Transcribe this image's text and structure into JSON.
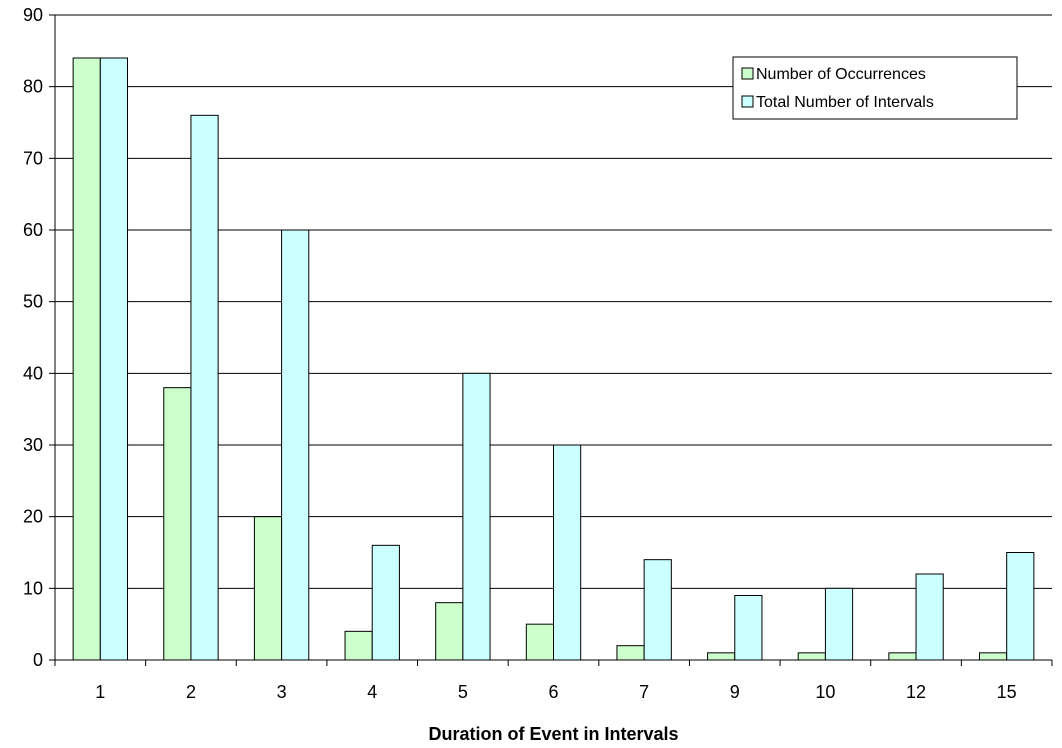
{
  "chart_data": {
    "type": "bar",
    "categories": [
      "1",
      "2",
      "3",
      "4",
      "5",
      "6",
      "7",
      "9",
      "10",
      "12",
      "15"
    ],
    "series": [
      {
        "name": "Number of Occurrences",
        "values": [
          84,
          38,
          20,
          4,
          8,
          5,
          2,
          1,
          1,
          1,
          1
        ],
        "color": "#ccffcc"
      },
      {
        "name": "Total Number of Intervals",
        "values": [
          84,
          76,
          60,
          16,
          40,
          30,
          14,
          9,
          10,
          12,
          15
        ],
        "color": "#ccffff"
      }
    ],
    "title": "",
    "xlabel": "Duration of Event in Intervals",
    "ylabel": "",
    "ylim": [
      0,
      90
    ],
    "yticks": [
      0,
      10,
      20,
      30,
      40,
      50,
      60,
      70,
      80,
      90
    ],
    "grid": true,
    "legend": "top-right"
  }
}
